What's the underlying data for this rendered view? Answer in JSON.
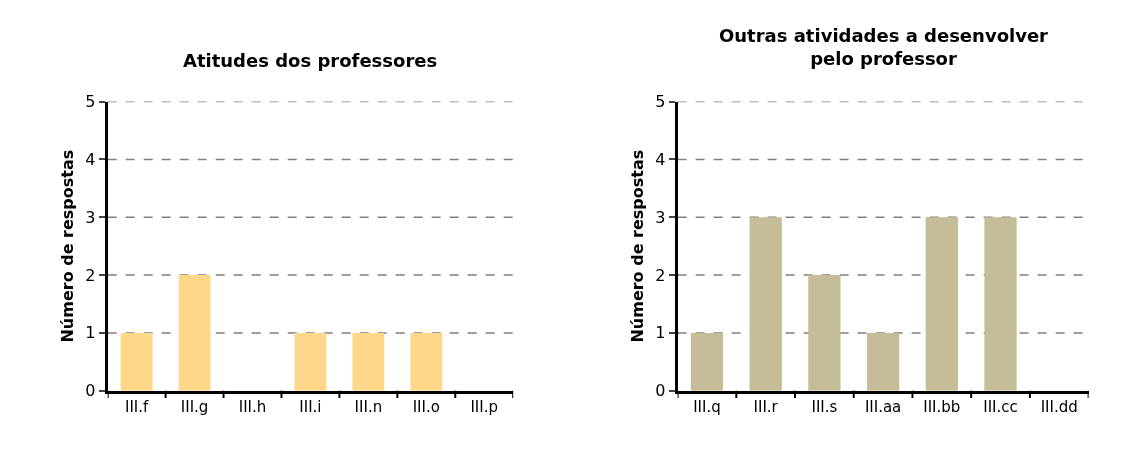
{
  "chart_data": [
    {
      "type": "bar",
      "title": "Atitudes dos professores",
      "ylabel": "Número de respostas",
      "categories": [
        "III.f",
        "III.g",
        "III.h",
        "III.i",
        "III.n",
        "III.o",
        "III.p"
      ],
      "values": [
        1,
        2,
        0,
        1,
        1,
        1,
        0
      ],
      "color": "#ffd78a",
      "ylim": [
        0,
        5
      ],
      "yticks": [
        0,
        1,
        2,
        3,
        4,
        5
      ],
      "grid": "y"
    },
    {
      "type": "bar",
      "title": "Outras atividades a desenvolver pelo professor",
      "ylabel": "Número de respostas",
      "categories": [
        "III.q",
        "III.r",
        "III.s",
        "III.aa",
        "III.bb",
        "III.cc",
        "III.dd"
      ],
      "values": [
        1,
        3,
        2,
        1,
        3,
        3,
        0
      ],
      "color": "#c4bd97",
      "ylim": [
        0,
        5
      ],
      "yticks": [
        0,
        1,
        2,
        3,
        4,
        5
      ],
      "grid": "y"
    }
  ]
}
